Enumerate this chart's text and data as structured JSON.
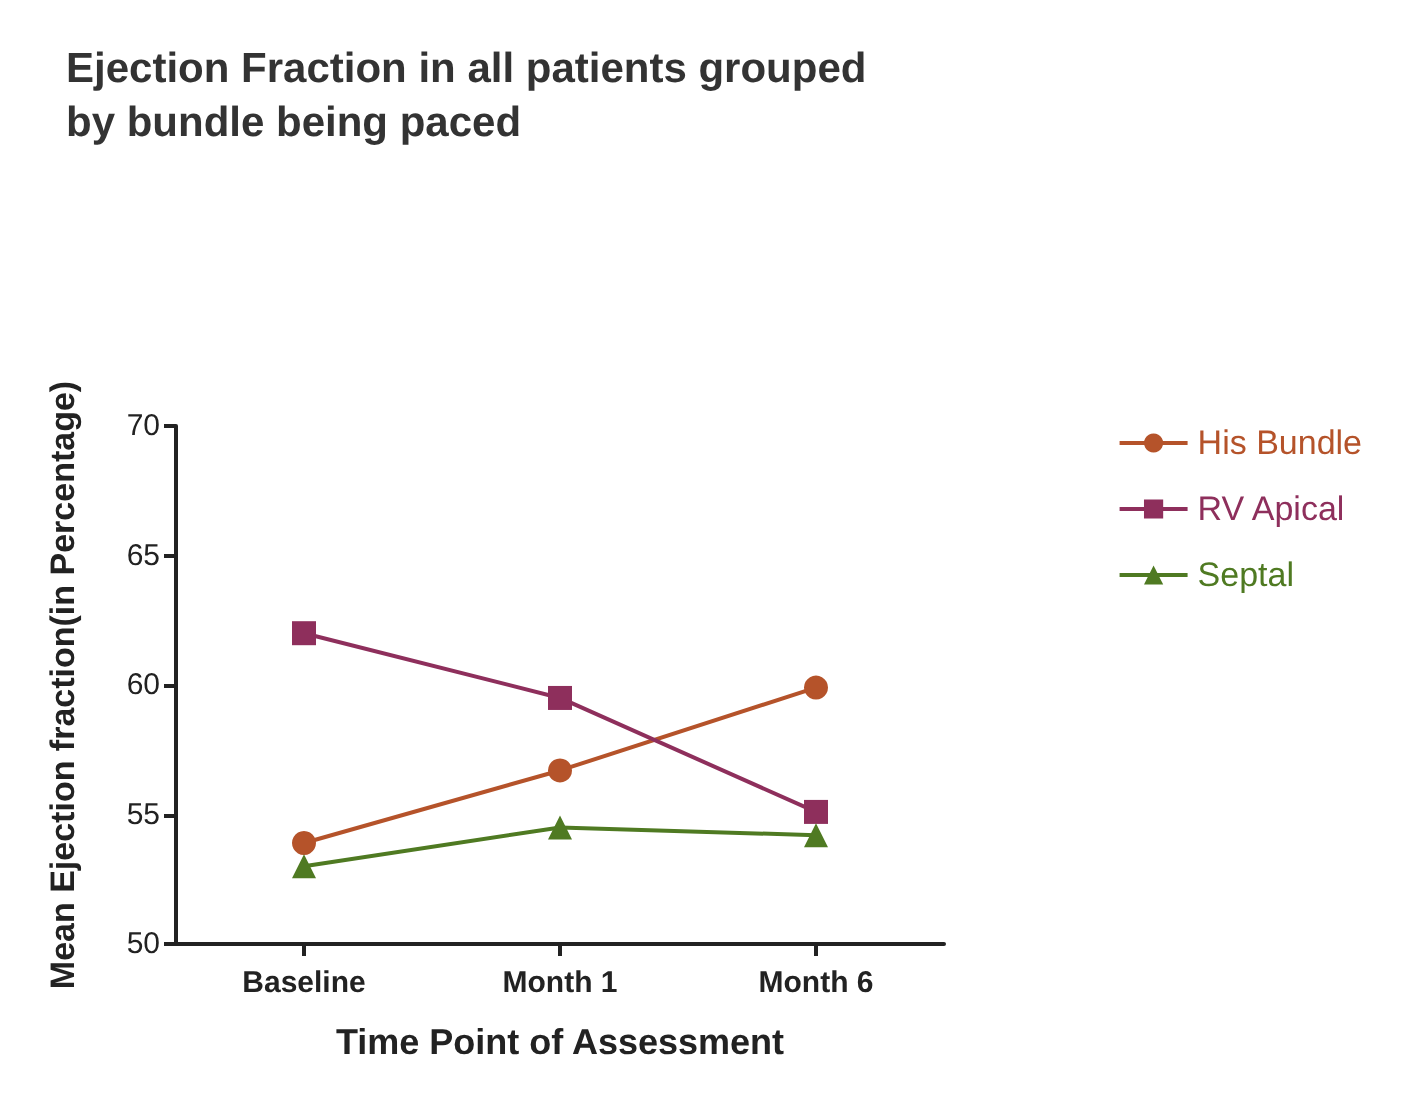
{
  "chart_data": {
    "type": "line",
    "title": "Ejection Fraction in all patients grouped\nby bundle being paced",
    "xlabel": "Time Point of Assessment",
    "ylabel": "Mean Ejection fraction(in Percentage)",
    "categories": [
      "Baseline",
      "Month 1",
      "Month 6"
    ],
    "series": [
      {
        "name": "His Bundle",
        "color": "#b5532a",
        "marker": "circle",
        "values": [
          53.9,
          56.7,
          59.9
        ]
      },
      {
        "name": "RV Apical",
        "color": "#8e2f5c",
        "marker": "square",
        "values": [
          62,
          59.5,
          55.1
        ]
      },
      {
        "name": "Septal",
        "color": "#4f7a22",
        "marker": "triangle",
        "values": [
          53,
          54.5,
          54.2
        ]
      }
    ],
    "ylim": [
      50,
      70
    ],
    "yticks": [
      50,
      55,
      60,
      65,
      70
    ],
    "grid": false,
    "legend": "right",
    "line_style": "solid"
  }
}
